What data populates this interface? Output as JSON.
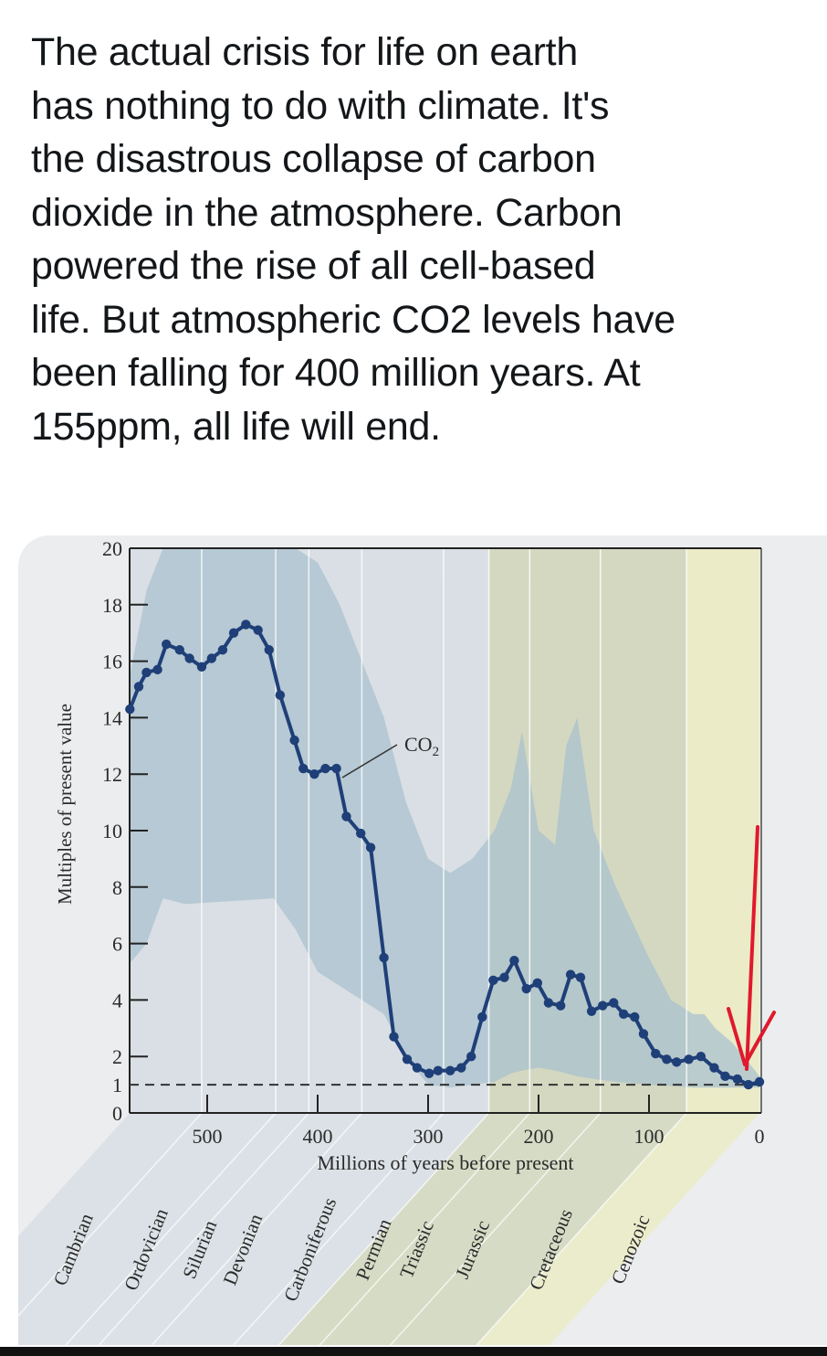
{
  "post": {
    "text_lines": [
      "The actual crisis for life on earth",
      "has nothing to do with climate. It's",
      "the disastrous collapse of carbon",
      "dioxide in the atmosphere. Carbon",
      "powered the rise of all cell-based",
      "life. But atmospheric CO2 levels have",
      "been falling for 400 million years. At",
      "155ppm, all life will end."
    ]
  },
  "chart_data": {
    "type": "line",
    "title": "",
    "series_label": "CO",
    "series_label_subscript": "2",
    "xlabel": "Millions of years before present",
    "ylabel": "Multiples of present value",
    "xlim": [
      570,
      0
    ],
    "ylim": [
      0,
      20
    ],
    "x_reversed": true,
    "x_ticks": [
      500,
      400,
      300,
      200,
      100,
      0
    ],
    "x_tick_labels": [
      "500",
      "400",
      "300",
      "200",
      "100",
      "0"
    ],
    "y_ticks": [
      0,
      1,
      2,
      4,
      6,
      8,
      10,
      12,
      14,
      16,
      18,
      20
    ],
    "y_tick_labels": [
      "0",
      "1",
      "2",
      "4",
      "6",
      "8",
      "10",
      "12",
      "14",
      "16",
      "18",
      "20"
    ],
    "reference_line": {
      "y": 1,
      "style": "dashed"
    },
    "grid": false,
    "series": [
      {
        "name": "CO2",
        "color": "#1f3f78",
        "x": [
          570,
          562,
          555,
          545,
          537,
          525,
          516,
          505,
          496,
          486,
          476,
          465,
          454,
          444,
          434,
          421,
          413,
          403,
          393,
          383,
          374,
          361,
          352,
          340,
          331,
          319,
          310,
          299,
          291,
          280,
          270,
          261,
          251,
          241,
          231,
          222,
          211,
          201,
          191,
          180,
          171,
          162,
          152,
          142,
          132,
          123,
          113,
          105,
          94,
          84,
          75,
          64,
          53,
          41,
          31,
          20,
          10,
          0
        ],
        "y": [
          14.3,
          15.1,
          15.6,
          15.7,
          16.6,
          16.4,
          16.1,
          15.8,
          16.1,
          16.4,
          17.0,
          17.3,
          17.1,
          16.4,
          14.8,
          13.2,
          12.2,
          12.0,
          12.2,
          12.2,
          10.5,
          9.9,
          9.4,
          5.5,
          2.7,
          1.9,
          1.6,
          1.4,
          1.5,
          1.5,
          1.6,
          2.0,
          3.4,
          4.7,
          4.8,
          5.4,
          4.4,
          4.6,
          3.9,
          3.8,
          4.9,
          4.8,
          3.6,
          3.8,
          3.9,
          3.5,
          3.4,
          2.8,
          2.1,
          1.9,
          1.8,
          1.9,
          2.0,
          1.6,
          1.3,
          1.2,
          1.0,
          1.1
        ]
      }
    ],
    "uncertainty_band": {
      "x": [
        570,
        555,
        540,
        520,
        480,
        440,
        420,
        400,
        380,
        360,
        340,
        320,
        300,
        280,
        260,
        240,
        225,
        215,
        200,
        185,
        175,
        165,
        150,
        130,
        100,
        80,
        60,
        50,
        40,
        25,
        10,
        0
      ],
      "upper": [
        15.5,
        18.5,
        20,
        20,
        20,
        20,
        20,
        19.5,
        18,
        16,
        14,
        11,
        9,
        8.5,
        9,
        10,
        11.5,
        13.5,
        10,
        9.5,
        13,
        14,
        10,
        8,
        5.5,
        4,
        3.5,
        3.5,
        3,
        2.5,
        1.8,
        1.3
      ],
      "lower": [
        5.3,
        6,
        7.6,
        7.4,
        7.5,
        7.6,
        6.5,
        5,
        4.5,
        4,
        3.5,
        2,
        1,
        0.9,
        1,
        1.1,
        1.4,
        1.5,
        1.6,
        1.5,
        1.4,
        1.3,
        1.2,
        1.1,
        1.0,
        0.95,
        0.9,
        0.9,
        0.9,
        0.9,
        0.9,
        0.9
      ]
    },
    "periods": [
      {
        "name": "Cambrian",
        "start": 570,
        "end": 505
      },
      {
        "name": "Ordovician",
        "start": 505,
        "end": 438
      },
      {
        "name": "Silurian",
        "start": 438,
        "end": 408
      },
      {
        "name": "Devonian",
        "start": 408,
        "end": 360
      },
      {
        "name": "Carboniferous",
        "start": 360,
        "end": 286
      },
      {
        "name": "Permian",
        "start": 286,
        "end": 245
      },
      {
        "name": "Triassic",
        "start": 245,
        "end": 208
      },
      {
        "name": "Jurassic",
        "start": 208,
        "end": 144
      },
      {
        "name": "Cretaceous",
        "start": 144,
        "end": 66
      },
      {
        "name": "Cenozoic",
        "start": 66,
        "end": 0
      }
    ],
    "annotation": {
      "type": "arrow",
      "color": "#e0192c",
      "points_to_x": 0
    }
  },
  "colors": {
    "paper_bg": "#ecedee",
    "paleozoic_band": "#d9dfe4",
    "mesozoic_band": "#d4d8c0",
    "cenozoic_band": "#ebebc8",
    "outer_band": "#a9c2cf",
    "inner_band": "#b9cdd8",
    "line": "#1f3f78",
    "arrow": "#e0192c"
  }
}
